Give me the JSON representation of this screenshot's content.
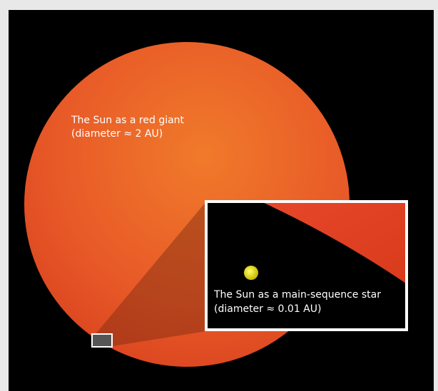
{
  "red_giant": {
    "label_line1": "The Sun as a red giant",
    "label_line2": "(diameter ≈ 2 AU)"
  },
  "inset": {
    "label_line1": "The Sun as a main-sequence star",
    "label_line2": "(diameter ≈ 0.01 AU)"
  }
}
